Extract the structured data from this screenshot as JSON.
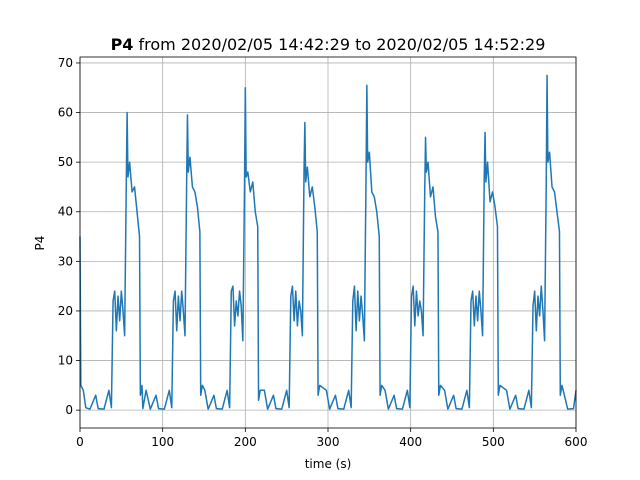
{
  "chart_data": {
    "type": "line",
    "title": {
      "bold": "P4",
      "text": "from 2020/02/05 14:42:29 to 2020/02/05 14:52:29"
    },
    "xlabel": "time (s)",
    "ylabel": "P4",
    "xlim": [
      0,
      600
    ],
    "ylim": [
      -3.6,
      71.2
    ],
    "xticks": [
      0,
      100,
      200,
      300,
      400,
      500,
      600
    ],
    "yticks": [
      0,
      10,
      20,
      30,
      40,
      50,
      60,
      70
    ],
    "grid": true,
    "series": [
      {
        "color": "#1f77b4",
        "x": [
          0,
          1,
          4,
          7,
          12,
          19,
          22,
          29,
          35,
          38,
          40,
          42,
          44,
          46,
          48,
          50,
          52,
          54,
          56,
          57,
          58,
          60,
          63,
          66,
          69,
          72,
          73,
          75,
          76,
          80,
          85,
          92,
          95,
          102,
          108,
          111,
          113,
          115,
          117,
          119,
          121,
          123,
          125,
          127,
          129,
          130,
          131,
          133,
          136,
          139,
          142,
          145,
          146,
          148,
          151,
          155,
          162,
          165,
          172,
          178,
          181,
          183,
          185,
          187,
          189,
          191,
          193,
          195,
          197,
          199,
          200,
          201,
          203,
          206,
          209,
          212,
          215,
          216,
          218,
          223,
          227,
          234,
          237,
          244,
          250,
          253,
          255,
          257,
          259,
          261,
          263,
          265,
          267,
          269,
          271,
          272,
          273,
          275,
          278,
          281,
          284,
          287,
          288,
          290,
          298,
          302,
          309,
          312,
          319,
          325,
          328,
          330,
          332,
          334,
          336,
          338,
          340,
          342,
          344,
          346,
          347,
          348,
          350,
          353,
          356,
          359,
          362,
          363,
          365,
          369,
          373,
          380,
          383,
          390,
          396,
          399,
          401,
          403,
          405,
          407,
          409,
          411,
          413,
          415,
          417,
          418,
          419,
          421,
          424,
          427,
          430,
          433,
          434,
          436,
          441,
          445,
          452,
          455,
          462,
          468,
          471,
          473,
          475,
          477,
          479,
          481,
          483,
          485,
          487,
          489,
          490,
          491,
          493,
          496,
          499,
          502,
          505,
          506,
          508,
          516,
          520,
          527,
          530,
          537,
          543,
          546,
          548,
          550,
          552,
          554,
          556,
          558,
          560,
          562,
          564,
          565,
          566,
          568,
          571,
          574,
          577,
          580,
          581,
          583,
          590,
          597,
          600
        ],
        "values": [
          35,
          5,
          4,
          0.5,
          0.2,
          3,
          0.3,
          0.2,
          4,
          0.5,
          22,
          24,
          16,
          23,
          18,
          24,
          20,
          15,
          46,
          60,
          47,
          50,
          44,
          45,
          40,
          35,
          3,
          5,
          0.3,
          4,
          0.2,
          3,
          0.3,
          0.2,
          4,
          0.5,
          22,
          24,
          16,
          23,
          18,
          24,
          20,
          15,
          46,
          59.5,
          48,
          51,
          45,
          44,
          41,
          36,
          3,
          5,
          4,
          0.2,
          3,
          0.3,
          0.2,
          4,
          0.5,
          24,
          25,
          17,
          22,
          19,
          24,
          21,
          14,
          45,
          65,
          47,
          48,
          44,
          46,
          40,
          37,
          2,
          4,
          4,
          0.2,
          3,
          0.3,
          0.2,
          4,
          0.5,
          23,
          25,
          18,
          24,
          17,
          22,
          20,
          15,
          48,
          58,
          46,
          49,
          43,
          45,
          41,
          36,
          3,
          5,
          4,
          0.2,
          3,
          0.3,
          0.2,
          4,
          0.5,
          22,
          25,
          16,
          24,
          18,
          23,
          19,
          14,
          47,
          65.5,
          50,
          52,
          44,
          43,
          40,
          35,
          3,
          5,
          4,
          0.2,
          3,
          0.3,
          0.2,
          4,
          0.5,
          23,
          25,
          17,
          24,
          19,
          22,
          20,
          15,
          44,
          55,
          48,
          50,
          43,
          45,
          39,
          36,
          3,
          5,
          4,
          0.2,
          3,
          0.3,
          0.2,
          4,
          0.5,
          22,
          24,
          17,
          23,
          18,
          24,
          20,
          15,
          47,
          56,
          46,
          50,
          42,
          44,
          41,
          37,
          3,
          5,
          4,
          0.2,
          3,
          0.3,
          0.2,
          4,
          0.5,
          21,
          24,
          16,
          23,
          19,
          25,
          20,
          14,
          46,
          67.5,
          50,
          52,
          45,
          44,
          40,
          36,
          3,
          5,
          0.2,
          0.3,
          4
        ]
      }
    ]
  }
}
